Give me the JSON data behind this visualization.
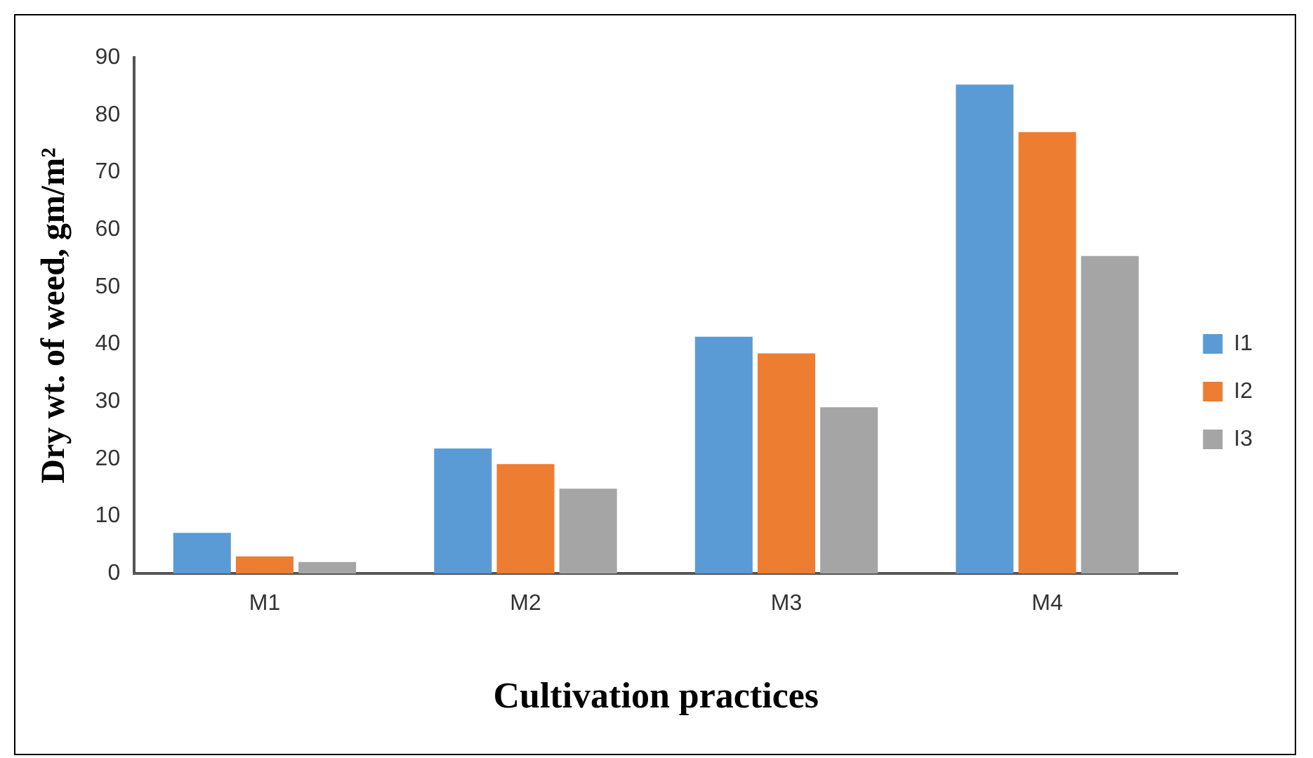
{
  "chart_data": {
    "type": "bar",
    "xlabel": "Cultivation practices",
    "ylabel": "Dry wt. of weed, gm/m²",
    "categories": [
      "M1",
      "M2",
      "M3",
      "M4"
    ],
    "series": [
      {
        "name": "I1",
        "color": "#5b9bd5",
        "values": [
          7.1,
          21.8,
          41.3,
          85.3
        ]
      },
      {
        "name": "I2",
        "color": "#ed7d31",
        "values": [
          3.0,
          19.1,
          38.4,
          77.0
        ]
      },
      {
        "name": "I3",
        "color": "#a5a5a5",
        "values": [
          2.0,
          14.8,
          29.0,
          55.4
        ]
      }
    ],
    "ylim": [
      0,
      90
    ],
    "yticks": [
      0,
      10,
      20,
      30,
      40,
      50,
      60,
      70,
      80,
      90
    ],
    "grid": false,
    "legend": "right"
  }
}
